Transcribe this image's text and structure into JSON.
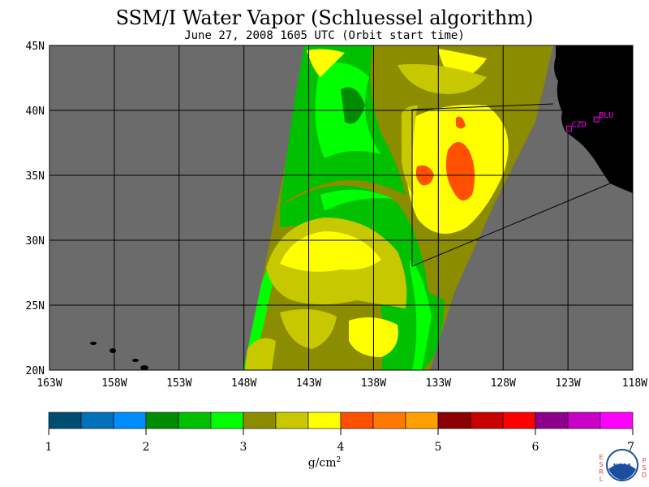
{
  "header": {
    "title": "SSM/I Water Vapor (Schluessel algorithm)",
    "subtitle": "June 27, 2008  1605 UTC  (Orbit start time)"
  },
  "map": {
    "lat_labels": [
      "45N",
      "40N",
      "35N",
      "30N",
      "25N",
      "20N"
    ],
    "lat_values": [
      45,
      40,
      35,
      30,
      25,
      20
    ],
    "lon_labels": [
      "163W",
      "158W",
      "153W",
      "148W",
      "143W",
      "138W",
      "133W",
      "128W",
      "123W",
      "118W"
    ],
    "lon_values": [
      -163,
      -158,
      -153,
      -148,
      -143,
      -138,
      -133,
      -128,
      -123,
      -118
    ],
    "stations": [
      {
        "label": "CZD",
        "lon": -122.9,
        "lat": 38.6
      },
      {
        "label": "BLU",
        "lon": -120.8,
        "lat": 39.3
      }
    ],
    "ocean_color": "#6b6b6b",
    "land_color": "#000000"
  },
  "colorbar": {
    "unit_base": "g/cm",
    "unit_exp": "2",
    "tick_labels": [
      "1",
      "2",
      "3",
      "4",
      "5",
      "6",
      "7"
    ],
    "colors": [
      "#004d73",
      "#0070b8",
      "#008cff",
      "#008c00",
      "#00c000",
      "#00ff00",
      "#8c8c00",
      "#c8c800",
      "#ffff00",
      "#ff5000",
      "#ff7800",
      "#ffa000",
      "#8c0000",
      "#c80000",
      "#ff0000",
      "#8c008c",
      "#c800c8",
      "#ff00ff"
    ]
  },
  "logo": {
    "left_letters": "ESRL",
    "right_letters": "PSD",
    "text": "NOAA"
  }
}
